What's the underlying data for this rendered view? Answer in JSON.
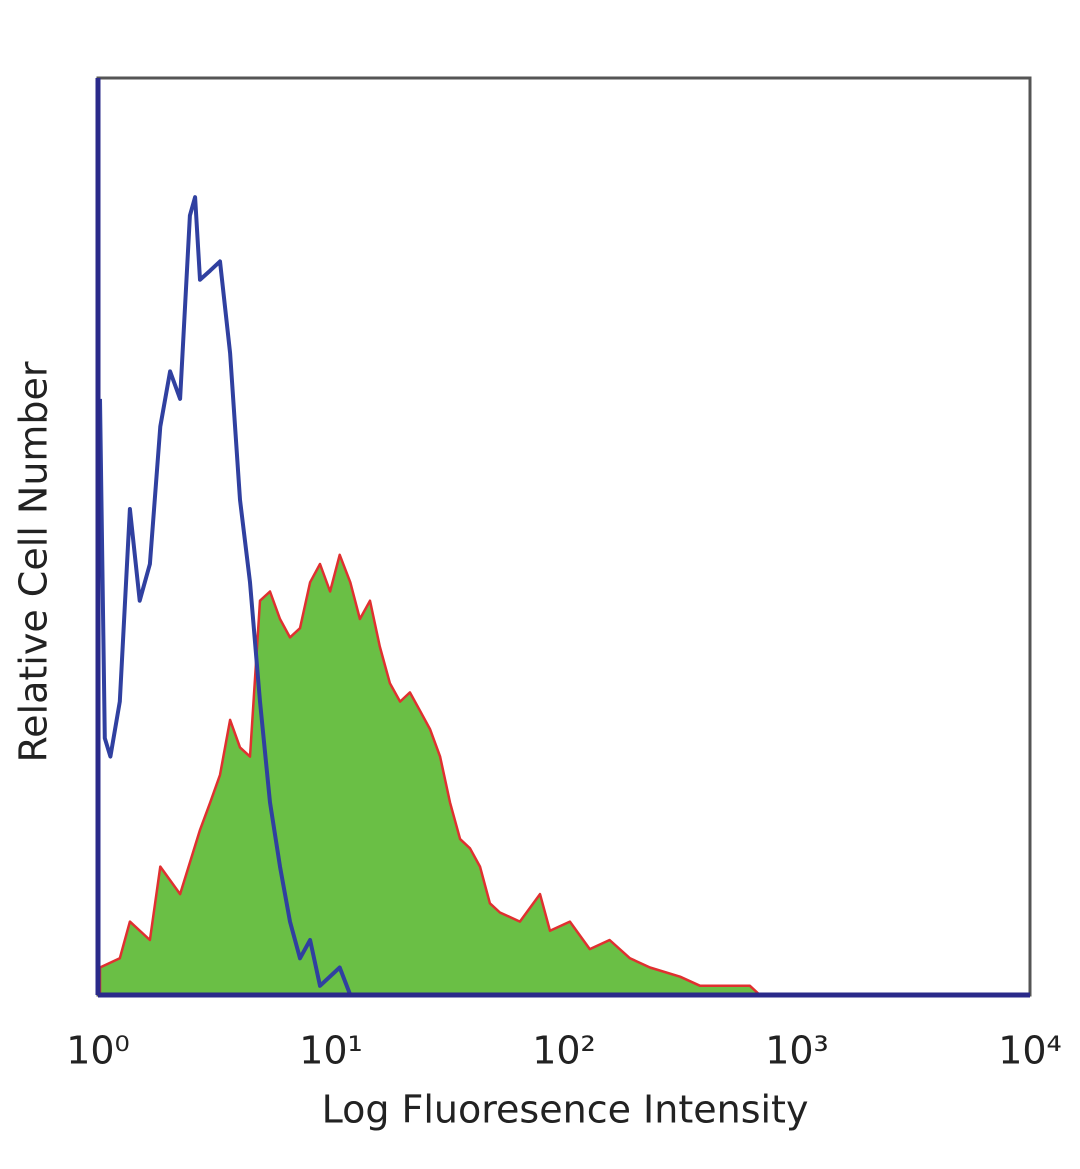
{
  "chart_data": {
    "type": "line",
    "xlabel": "Log Fluoresence Intensity",
    "ylabel": "Relative Cell Number",
    "xscale": "log",
    "xlim": [
      1,
      10000
    ],
    "ylim": [
      0,
      100
    ],
    "xticks": [
      {
        "value": 1,
        "label": "10⁰"
      },
      {
        "value": 10,
        "label": "10¹"
      },
      {
        "value": 100,
        "label": "10²"
      },
      {
        "value": 1000,
        "label": "10³"
      },
      {
        "value": 10000,
        "label": "10⁴"
      }
    ],
    "grid": false,
    "series": [
      {
        "color": "#3040a0",
        "fill": false,
        "x": [
          1.02,
          1.07,
          1.13,
          1.24,
          1.37,
          1.51,
          1.67,
          1.85,
          2.04,
          2.25,
          2.48,
          2.61,
          2.74,
          3.03,
          3.34,
          3.69,
          4.07,
          4.49,
          4.96,
          5.47,
          6.04,
          6.67,
          7.36,
          8.13,
          8.97,
          10.9,
          12.1
        ],
        "values": [
          65,
          28,
          26,
          32,
          53,
          43,
          47,
          62,
          68,
          65,
          85,
          87,
          78,
          79,
          80,
          70,
          54,
          45,
          32,
          21,
          14,
          8,
          4,
          6,
          1,
          3,
          0
        ]
      },
      {
        "color": "#6abf45",
        "edge_color": "#e03030",
        "fill": true,
        "x": [
          1.02,
          1.24,
          1.37,
          1.67,
          1.85,
          2.25,
          2.74,
          3.03,
          3.34,
          3.69,
          4.07,
          4.49,
          4.96,
          5.47,
          6.04,
          6.67,
          7.36,
          8.13,
          8.97,
          9.91,
          10.9,
          12.1,
          13.3,
          14.7,
          16.2,
          17.9,
          19.8,
          21.8,
          24.1,
          26.6,
          29.4,
          32.4,
          35.8,
          39.5,
          43.6,
          48.1,
          53.1,
          64.7,
          78.9,
          87.1,
          106,
          129,
          157,
          192,
          234,
          315,
          384,
          628,
          693
        ],
        "values": [
          3,
          4,
          8,
          6,
          14,
          11,
          18,
          21,
          24,
          30,
          27,
          26,
          43,
          44,
          41,
          39,
          40,
          45,
          47,
          44,
          48,
          45,
          41,
          43,
          38,
          34,
          32,
          33,
          31,
          29,
          26,
          21,
          17,
          16,
          14,
          10,
          9,
          8,
          11,
          7,
          8,
          5,
          6,
          4,
          3,
          2,
          1,
          1,
          0
        ]
      }
    ]
  }
}
